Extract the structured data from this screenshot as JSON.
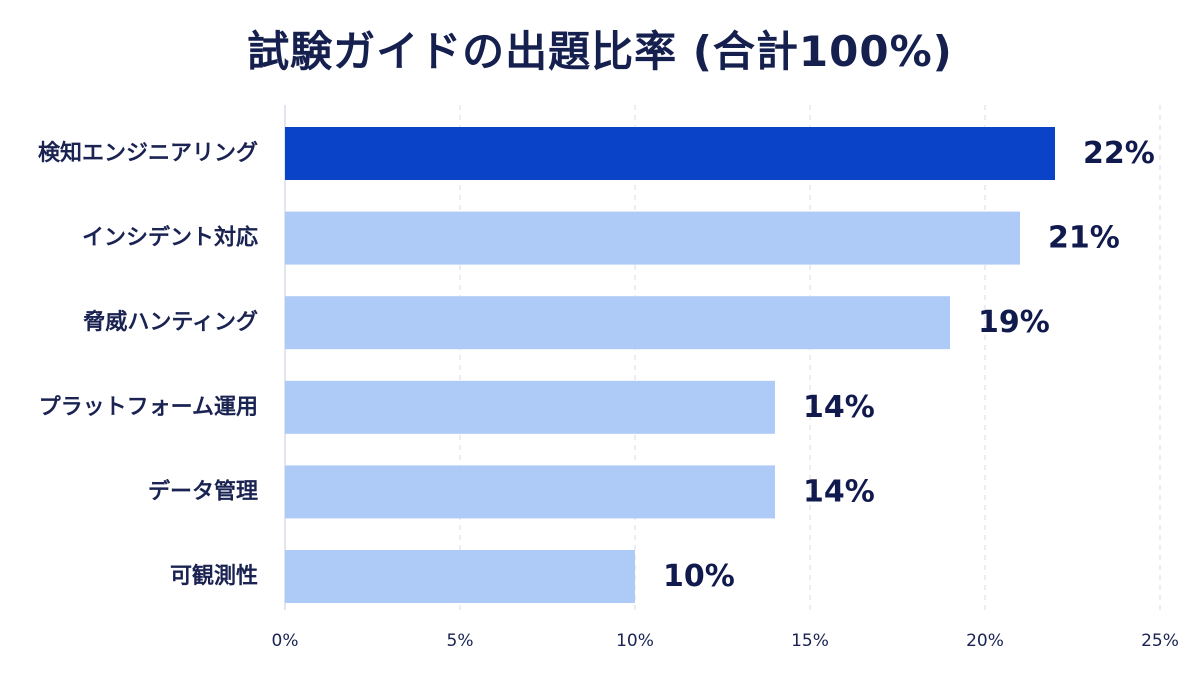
{
  "chart_data": {
    "type": "bar",
    "orientation": "horizontal",
    "title": "試験ガイドの出題比率 (合計100%)",
    "categories": [
      "検知エンジニアリング",
      "インシデント対応",
      "脅威ハンティング",
      "プラットフォーム運用",
      "データ管理",
      "可観測性"
    ],
    "values": [
      22,
      21,
      19,
      14,
      14,
      10
    ],
    "value_labels": [
      "22%",
      "21%",
      "19%",
      "14%",
      "14%",
      "10%"
    ],
    "xlim": [
      0,
      25
    ],
    "x_ticks": [
      0,
      5,
      10,
      15,
      20,
      25
    ],
    "x_tick_labels": [
      "0%",
      "5%",
      "10%",
      "15%",
      "20%",
      "25%"
    ],
    "xlabel": "",
    "ylabel": "",
    "grid": true,
    "colors": {
      "highlight": "#0a43c8",
      "bar": "#aecbf7"
    }
  }
}
